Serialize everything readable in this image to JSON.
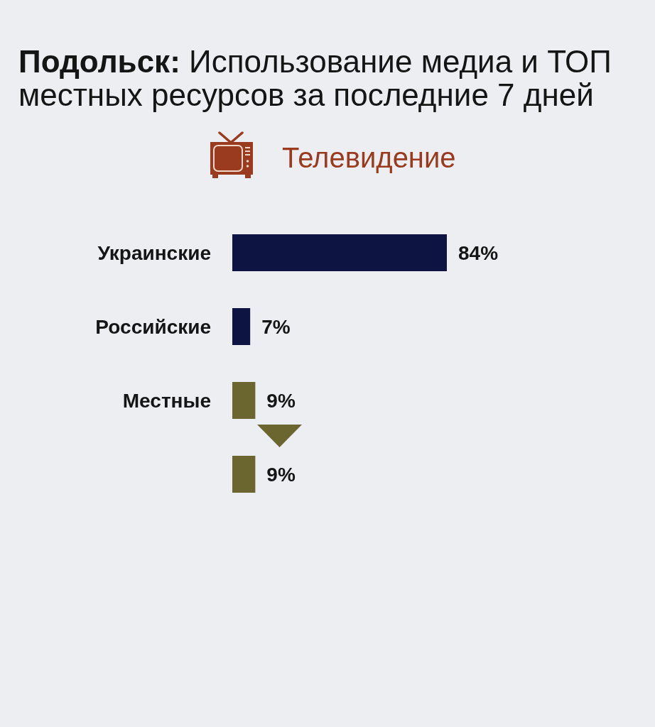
{
  "chart_data": {
    "type": "bar",
    "orientation": "horizontal",
    "title": "Подольск: Использование медиа и ТОП местных ресурсов за последние 7 дней",
    "subtitle": "Телевидение",
    "categories": [
      "Украинские",
      "Российские",
      "Местные",
      null
    ],
    "values": [
      84,
      7,
      9,
      9
    ],
    "colors": [
      "#0e1442",
      "#0e1442",
      "#6b6530",
      "#6b6530"
    ],
    "value_labels": [
      "84%",
      "7%",
      "9%",
      "9%"
    ],
    "tick_labels": "y"
  }
}
